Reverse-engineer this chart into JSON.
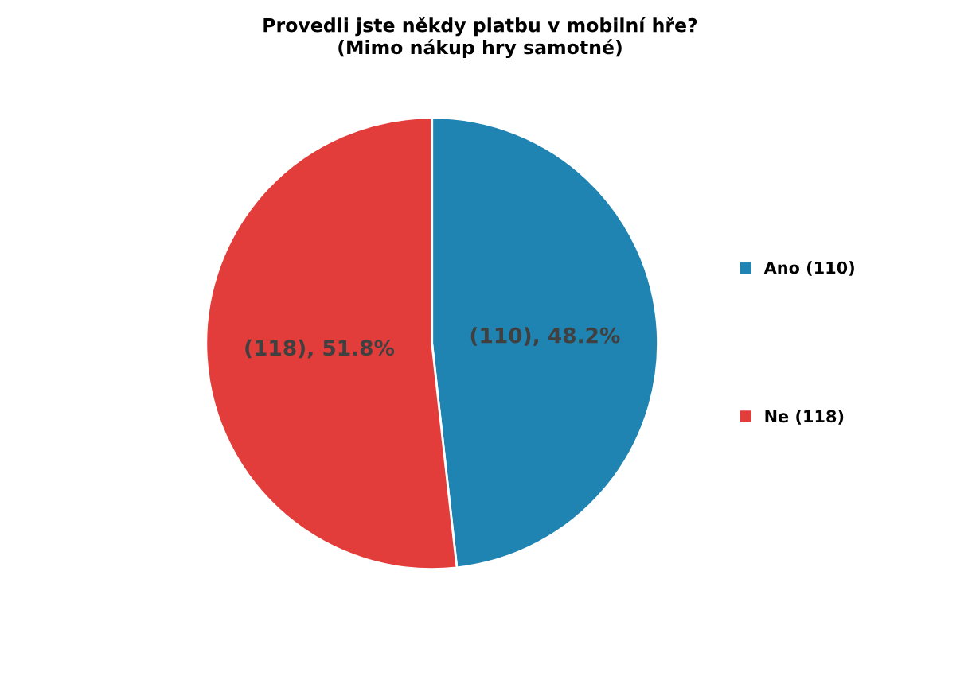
{
  "chart_data": {
    "type": "pie",
    "title": "Provedli jste někdy platbu v mobilní hře?\n(Mimo nákup hry samotné)",
    "categories": [
      "Ano (110)",
      "Ne (118)"
    ],
    "values": [
      110,
      118
    ],
    "colors": [
      "#1f84b2",
      "#e23d3a"
    ],
    "value_labels": [
      "(110), 48.2%",
      "(118), 51.8%"
    ],
    "legend": "right"
  }
}
